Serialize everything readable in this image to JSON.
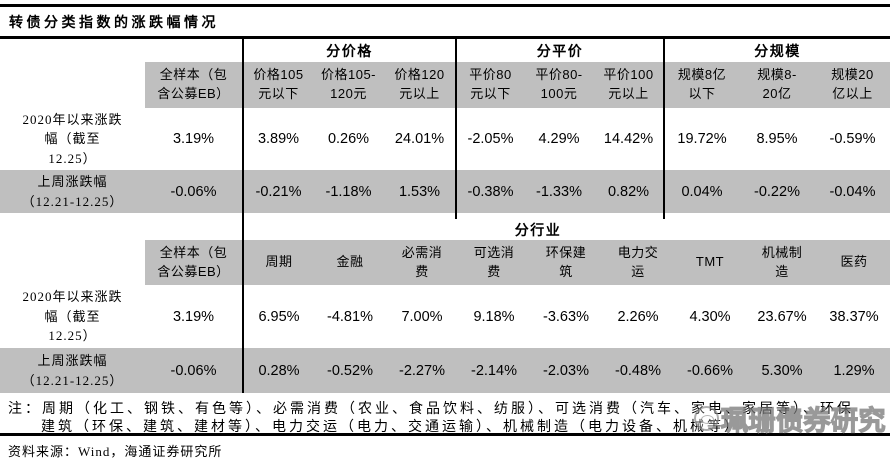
{
  "title": "转债分类指数的涨跌幅情况",
  "colors": {
    "row_shade": "#bfbfbf",
    "rule": "#000000"
  },
  "t1": {
    "groups": [
      "分价格",
      "分平价",
      "分规模"
    ],
    "h": {
      "all": "全样本（包\n含公募EB）",
      "cols": [
        "价格105\n元以下",
        "价格105-\n120元",
        "价格120\n元以上",
        "平价80\n元以下",
        "平价80-\n100元",
        "平价100\n元以上",
        "规模8亿\n以下",
        "规模8-\n20亿",
        "规模20\n亿以上"
      ]
    },
    "rows": [
      {
        "label": "2020年以来涨跌\n幅（截至\n12.25）",
        "all": "3.19%",
        "v": [
          "3.89%",
          "0.26%",
          "24.01%",
          "-2.05%",
          "4.29%",
          "14.42%",
          "19.72%",
          "8.95%",
          "-0.59%"
        ]
      },
      {
        "label": "上周涨跌幅\n（12.21-12.25）",
        "all": "-0.06%",
        "v": [
          "-0.21%",
          "-1.18%",
          "1.53%",
          "-0.38%",
          "-1.33%",
          "0.82%",
          "0.04%",
          "-0.22%",
          "-0.04%"
        ]
      }
    ]
  },
  "t2": {
    "group": "分行业",
    "h": {
      "all": "全样本（包\n含公募EB）",
      "cols": [
        "周期",
        "金融",
        "必需消\n费",
        "可选消\n费",
        "环保建\n筑",
        "电力交\n运",
        "TMT",
        "机械制\n造",
        "医药"
      ]
    },
    "rows": [
      {
        "label": "2020年以来涨跌\n幅（截至\n12.25）",
        "all": "3.19%",
        "v": [
          "6.95%",
          "-4.81%",
          "7.00%",
          "9.18%",
          "-3.63%",
          "2.26%",
          "4.30%",
          "23.67%",
          "38.37%"
        ]
      },
      {
        "label": "上周涨跌幅\n（12.21-12.25）",
        "all": "-0.06%",
        "v": [
          "0.28%",
          "-0.52%",
          "-2.27%",
          "-2.14%",
          "-2.03%",
          "-0.48%",
          "-0.66%",
          "5.30%",
          "1.29%"
        ]
      }
    ]
  },
  "notes": {
    "line1": "注：周期（化工、钢铁、有色等）、必需消费（农业、食品饮料、纺服）、可选消费（汽车、家电、家居等）、环保",
    "line2": "建筑（环保、建筑、建材等）、电力交运（电力、交通运输）、机械制造（电力设备、机械等）"
  },
  "source": "资料来源：Wind，海通证券研究所",
  "watermark": "珮珊债券研究"
}
